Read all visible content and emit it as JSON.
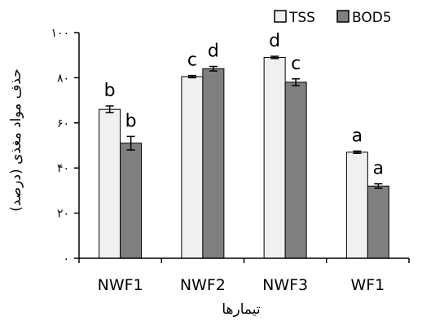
{
  "chart_data": {
    "type": "bar",
    "xlabel": "تیمارها",
    "ylabel": "حذف مواد مغذی (درصد)",
    "categories": [
      "NWF1",
      "NWF2",
      "NWF3",
      "WF1"
    ],
    "ylim": [
      0,
      100
    ],
    "yticks": [
      0,
      20,
      40,
      60,
      80,
      100
    ],
    "ytick_labels": [
      "۰",
      "۲۰",
      "۴۰",
      "۶۰",
      "۸۰",
      "۱۰۰"
    ],
    "legend_position": "top-right",
    "series": [
      {
        "name": "TSS",
        "color": "#f0f0f0",
        "values": [
          66,
          80.5,
          89,
          47
        ],
        "errors": [
          1.5,
          0.5,
          0.5,
          0.5
        ],
        "labels": [
          "b",
          "c",
          "d",
          "a"
        ]
      },
      {
        "name": "BOD5",
        "color": "#7f7f7f",
        "values": [
          51,
          84,
          78,
          32
        ],
        "errors": [
          3,
          1,
          1.5,
          1
        ],
        "labels": [
          "b",
          "d",
          "c",
          "a"
        ]
      }
    ]
  }
}
